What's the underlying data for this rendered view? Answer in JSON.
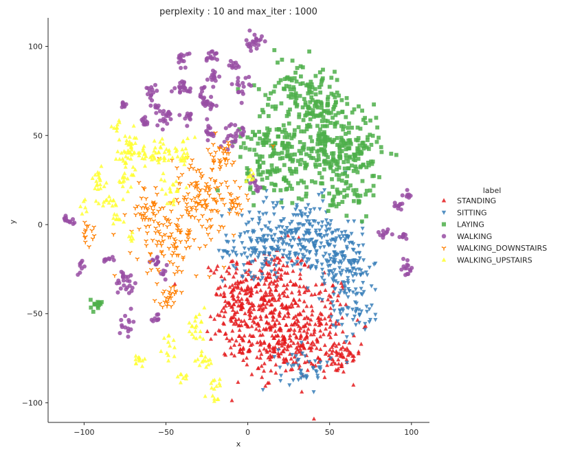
{
  "chart_data": {
    "type": "scatter",
    "title": "perplexity : 10 and max_iter : 1000",
    "xlabel": "x",
    "ylabel": "y",
    "xlim": [
      -122,
      111
    ],
    "ylim": [
      -111,
      116
    ],
    "xticks": [
      -100,
      -50,
      0,
      50,
      100
    ],
    "yticks": [
      -100,
      -50,
      0,
      50,
      100
    ],
    "grid": false,
    "legend": {
      "title": "label",
      "placement": "right-outside"
    },
    "series": [
      {
        "name": "STANDING",
        "color": "#e41a1c",
        "marker": "triangle-up",
        "clusters": [
          {
            "x": 12,
            "y": -40,
            "sx": 14,
            "sy": 14,
            "n": 260
          },
          {
            "x": 22,
            "y": -68,
            "sx": 12,
            "sy": 9,
            "n": 180
          },
          {
            "x": -6,
            "y": -50,
            "sx": 8,
            "sy": 14,
            "n": 120
          },
          {
            "x": 45,
            "y": -55,
            "sx": 9,
            "sy": 14,
            "n": 110
          },
          {
            "x": 55,
            "y": -75,
            "sx": 7,
            "sy": 5,
            "n": 50
          }
        ]
      },
      {
        "name": "SITTING",
        "color": "#377eb8",
        "marker": "triangle-down",
        "clusters": [
          {
            "x": 30,
            "y": -5,
            "sx": 18,
            "sy": 10,
            "n": 230
          },
          {
            "x": 55,
            "y": -20,
            "sx": 10,
            "sy": 10,
            "n": 120
          },
          {
            "x": 65,
            "y": -40,
            "sx": 8,
            "sy": 12,
            "n": 90
          },
          {
            "x": 5,
            "y": -15,
            "sx": 10,
            "sy": 7,
            "n": 80
          },
          {
            "x": 35,
            "y": -80,
            "sx": 8,
            "sy": 6,
            "n": 45
          }
        ]
      },
      {
        "name": "LAYING",
        "color": "#4daf4a",
        "marker": "square",
        "clusters": [
          {
            "x": 35,
            "y": 45,
            "sx": 18,
            "sy": 14,
            "n": 240
          },
          {
            "x": 62,
            "y": 40,
            "sx": 10,
            "sy": 11,
            "n": 140
          },
          {
            "x": 30,
            "y": 78,
            "sx": 12,
            "sy": 8,
            "n": 80
          },
          {
            "x": 12,
            "y": 35,
            "sx": 8,
            "sy": 9,
            "n": 70
          },
          {
            "x": 45,
            "y": 65,
            "sx": 8,
            "sy": 6,
            "n": 50
          },
          {
            "x": 62,
            "y": 15,
            "sx": 6,
            "sy": 5,
            "n": 30
          },
          {
            "x": -92,
            "y": -45,
            "sx": 2,
            "sy": 1.5,
            "n": 14
          }
        ]
      },
      {
        "name": "WALKING",
        "color": "#984ea3",
        "marker": "circle",
        "clusters": [
          {
            "x": 4,
            "y": 102,
            "sx": 2.5,
            "sy": 2.5,
            "n": 22
          },
          {
            "x": -40,
            "y": 93,
            "sx": 1.5,
            "sy": 2.5,
            "n": 14
          },
          {
            "x": -22,
            "y": 95,
            "sx": 2,
            "sy": 2,
            "n": 14
          },
          {
            "x": -20,
            "y": 83,
            "sx": 2,
            "sy": 2,
            "n": 12
          },
          {
            "x": -9,
            "y": 90,
            "sx": 1.5,
            "sy": 2,
            "n": 10
          },
          {
            "x": -4,
            "y": 77,
            "sx": 3,
            "sy": 3,
            "n": 16
          },
          {
            "x": -58,
            "y": 76,
            "sx": 2,
            "sy": 2,
            "n": 12
          },
          {
            "x": -40,
            "y": 77,
            "sx": 3.5,
            "sy": 2,
            "n": 20
          },
          {
            "x": -26,
            "y": 75,
            "sx": 2,
            "sy": 2,
            "n": 10
          },
          {
            "x": -56,
            "y": 66,
            "sx": 2,
            "sy": 2,
            "n": 10
          },
          {
            "x": -25,
            "y": 68,
            "sx": 3,
            "sy": 2,
            "n": 16
          },
          {
            "x": -76,
            "y": 66,
            "sx": 1.5,
            "sy": 1.5,
            "n": 8
          },
          {
            "x": -50,
            "y": 60,
            "sx": 3,
            "sy": 2.5,
            "n": 18
          },
          {
            "x": -64,
            "y": 58,
            "sx": 2,
            "sy": 1.5,
            "n": 10
          },
          {
            "x": -36,
            "y": 60,
            "sx": 2,
            "sy": 2,
            "n": 10
          },
          {
            "x": -24,
            "y": 52,
            "sx": 2,
            "sy": 3,
            "n": 14
          },
          {
            "x": -7,
            "y": 50,
            "sx": 3.5,
            "sy": 3.5,
            "n": 24
          },
          {
            "x": 4,
            "y": 23,
            "sx": 2,
            "sy": 2,
            "n": 12
          },
          {
            "x": -109,
            "y": 3,
            "sx": 2,
            "sy": 1,
            "n": 12
          },
          {
            "x": 93,
            "y": 10,
            "sx": 2,
            "sy": 1.5,
            "n": 10
          },
          {
            "x": 98,
            "y": 17,
            "sx": 1.5,
            "sy": 1.5,
            "n": 8
          },
          {
            "x": 84,
            "y": -5,
            "sx": 2.5,
            "sy": 1.5,
            "n": 10
          },
          {
            "x": 95,
            "y": -6,
            "sx": 2,
            "sy": 1,
            "n": 8
          },
          {
            "x": 97,
            "y": -24,
            "sx": 2,
            "sy": 3,
            "n": 14
          },
          {
            "x": -85,
            "y": -20,
            "sx": 1.5,
            "sy": 1.5,
            "n": 8
          },
          {
            "x": -102,
            "y": -24,
            "sx": 1.5,
            "sy": 2,
            "n": 8
          },
          {
            "x": -56,
            "y": -21,
            "sx": 2.5,
            "sy": 2,
            "n": 12
          },
          {
            "x": -52,
            "y": -28,
            "sx": 1.5,
            "sy": 1.5,
            "n": 6
          },
          {
            "x": -74,
            "y": -32,
            "sx": 3.5,
            "sy": 4,
            "n": 24
          },
          {
            "x": -56,
            "y": -52,
            "sx": 1.5,
            "sy": 2,
            "n": 8
          },
          {
            "x": -74,
            "y": -56,
            "sx": 2,
            "sy": 3,
            "n": 14
          }
        ]
      },
      {
        "name": "WALKING_DOWNSTAIRS",
        "color": "#ff7f00",
        "marker": "tri-down",
        "clusters": [
          {
            "x": -28,
            "y": 18,
            "sx": 12,
            "sy": 12,
            "n": 110
          },
          {
            "x": -45,
            "y": -8,
            "sx": 12,
            "sy": 12,
            "n": 110
          },
          {
            "x": -60,
            "y": 8,
            "sx": 6,
            "sy": 6,
            "n": 40
          },
          {
            "x": -15,
            "y": 38,
            "sx": 3,
            "sy": 4,
            "n": 22
          },
          {
            "x": -98,
            "y": -5,
            "sx": 2,
            "sy": 3,
            "n": 14
          },
          {
            "x": -48,
            "y": -40,
            "sx": 4,
            "sy": 3,
            "n": 22
          },
          {
            "x": -8,
            "y": 12,
            "sx": 3,
            "sy": 3,
            "n": 18
          }
        ]
      },
      {
        "name": "WALKING_UPSTAIRS",
        "color": "#ffff33",
        "marker": "triangle-up",
        "clusters": [
          {
            "x": -72,
            "y": 40,
            "sx": 8,
            "sy": 6,
            "n": 55
          },
          {
            "x": -52,
            "y": 40,
            "sx": 5,
            "sy": 4,
            "n": 30
          },
          {
            "x": -40,
            "y": 40,
            "sx": 4,
            "sy": 4,
            "n": 22
          },
          {
            "x": -90,
            "y": 25,
            "sx": 3,
            "sy": 3,
            "n": 18
          },
          {
            "x": -75,
            "y": 25,
            "sx": 3,
            "sy": 3,
            "n": 16
          },
          {
            "x": -85,
            "y": 12,
            "sx": 4,
            "sy": 2,
            "n": 16
          },
          {
            "x": -47,
            "y": 20,
            "sx": 4,
            "sy": 4,
            "n": 20
          },
          {
            "x": -80,
            "y": 55,
            "sx": 1.5,
            "sy": 1.5,
            "n": 8
          },
          {
            "x": -100,
            "y": 10,
            "sx": 1.5,
            "sy": 1.5,
            "n": 6
          },
          {
            "x": -80,
            "y": 3,
            "sx": 2,
            "sy": 2,
            "n": 8
          },
          {
            "x": -72,
            "y": -8,
            "sx": 2,
            "sy": 2,
            "n": 6
          },
          {
            "x": -32,
            "y": -58,
            "sx": 3,
            "sy": 4,
            "n": 20
          },
          {
            "x": -48,
            "y": -68,
            "sx": 2,
            "sy": 3,
            "n": 12
          },
          {
            "x": -66,
            "y": -76,
            "sx": 2,
            "sy": 2,
            "n": 12
          },
          {
            "x": -27,
            "y": -78,
            "sx": 3,
            "sy": 4,
            "n": 16
          },
          {
            "x": -40,
            "y": -85,
            "sx": 2,
            "sy": 2,
            "n": 8
          },
          {
            "x": -20,
            "y": -90,
            "sx": 2,
            "sy": 2,
            "n": 8
          },
          {
            "x": -20,
            "y": -98,
            "sx": 2,
            "sy": 1,
            "n": 6
          },
          {
            "x": 3,
            "y": 28,
            "sx": 2,
            "sy": 2,
            "n": 8
          }
        ]
      }
    ]
  }
}
